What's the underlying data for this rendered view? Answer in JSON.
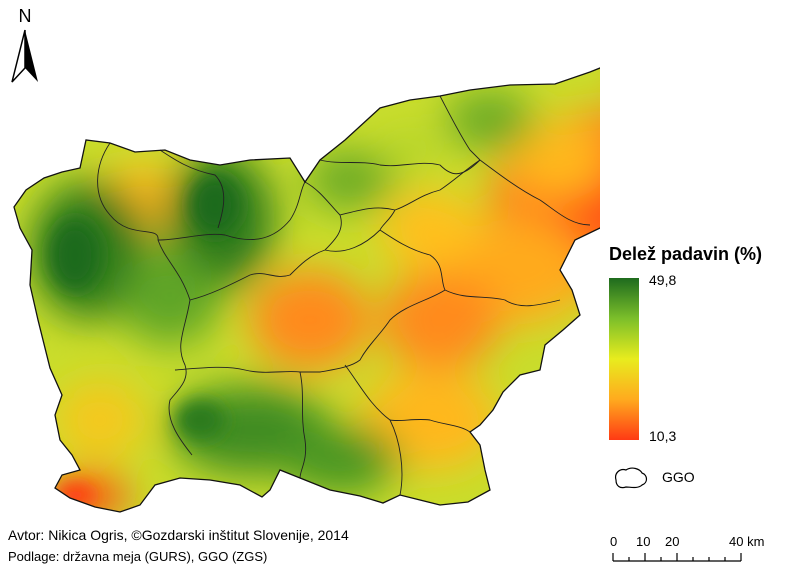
{
  "north_arrow": {
    "label": "N"
  },
  "legend": {
    "title": "Delež padavin (%)",
    "max_label": "49,8",
    "min_label": "10,3",
    "ramp_colors": [
      "#1e6b1e",
      "#7cbf2a",
      "#e8ec1e",
      "#ffaa1e",
      "#ff3a14"
    ],
    "boundary_label": "GGO"
  },
  "credit": "Avtor: Nikica Ogris, ©Gozdarski inštitut Slovenije, 2014",
  "source": "Podlage: državna meja (GURS), GGO (ZGS)",
  "scale_bar": {
    "ticks": [
      "0",
      "10",
      "20",
      "40 km"
    ]
  }
}
